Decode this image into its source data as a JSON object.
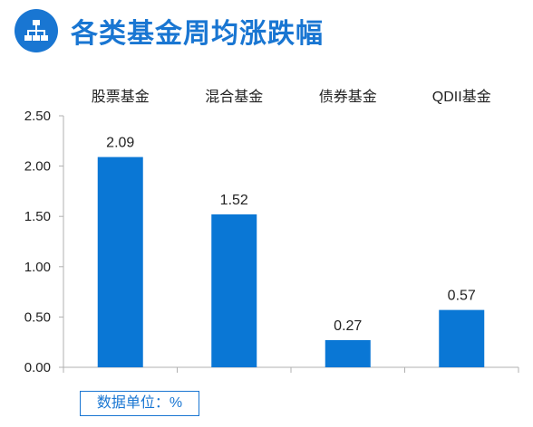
{
  "header": {
    "title": "各类基金周均涨跌幅",
    "icon": "org-chart-icon"
  },
  "unit_note": "数据单位：%",
  "colors": {
    "accent": "#1976d2",
    "bar": "#0a77d5",
    "axis": "#b0b0b0",
    "text": "#222222"
  },
  "chart_data": {
    "type": "bar",
    "categories": [
      "股票基金",
      "混合基金",
      "债券基金",
      "QDII基金"
    ],
    "values": [
      2.09,
      1.52,
      0.27,
      0.57
    ],
    "value_labels": [
      "2.09",
      "1.52",
      "0.27",
      "0.57"
    ],
    "ylim": [
      0,
      2.5
    ],
    "yticks": [
      "0.00",
      "0.50",
      "1.00",
      "1.50",
      "2.00",
      "2.50"
    ],
    "category_axis_position": "top",
    "grid": false,
    "legend": "none"
  }
}
